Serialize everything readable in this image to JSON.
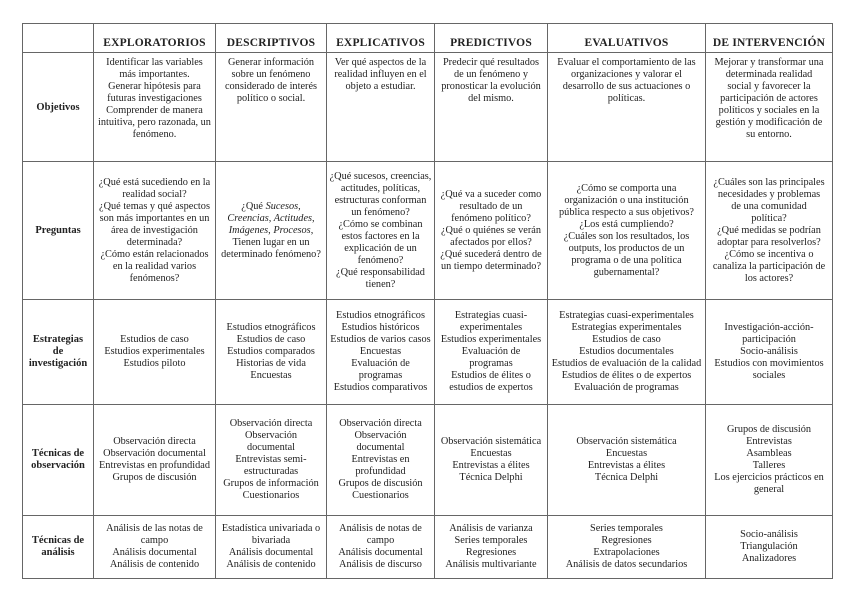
{
  "columns": [
    "",
    "EXPLORATORIOS",
    "DESCRIPTIVOS",
    "EXPLICATIVOS",
    "PREDICTIVOS",
    "EVALUATIVOS",
    "DE INTERVENCIÓN"
  ],
  "rows": [
    {
      "header": [
        "Objetivos"
      ],
      "cells": [
        [
          "Identificar las variables",
          "más importantes.",
          "Generar hipótesis para",
          "futuras investigaciones",
          "Comprender de manera",
          "intuitiva, pero razonada, un",
          "fenómeno."
        ],
        [
          "Generar información",
          "sobre un fenómeno",
          "considerado de interés",
          "político o social."
        ],
        [
          "Ver qué aspectos de la",
          "realidad influyen en el",
          "objeto a estudiar."
        ],
        [
          "Predecir qué resultados",
          "de un fenómeno y",
          "pronosticar la evolución",
          "del mismo."
        ],
        [
          "Evaluar el comportamiento de las",
          "organizaciones y valorar el",
          "desarrollo de sus actuaciones o",
          "políticas."
        ],
        [
          "Mejorar y transformar una",
          "determinada realidad",
          "social y favorecer la",
          "participación de actores",
          "políticos y sociales en la",
          "gestión y modificación de",
          "su entorno."
        ]
      ]
    },
    {
      "header": [
        "Preguntas"
      ],
      "cells": [
        [
          "¿Qué está sucediendo en la",
          "realidad social?",
          "¿Qué temas y qué aspectos",
          "son más importantes en un",
          "área de investigación",
          "determinada?",
          "¿Cómo están relacionados",
          "en la realidad varios",
          "fenómenos?"
        ],
        [
          [
            {
              "t": "¿Qué "
            },
            {
              "t": "Sucesos,",
              "i": true
            }
          ],
          [
            {
              "t": "Creencias, Actitudes,",
              "i": true
            }
          ],
          [
            {
              "t": "Imágenes, Procesos",
              "i": true
            },
            {
              "t": ","
            }
          ],
          "Tienen lugar en un",
          "determinado fenómeno?"
        ],
        [
          "¿Qué sucesos, creencias,",
          "actitudes, políticas,",
          "estructuras conforman",
          "un fenómeno?",
          "¿Cómo se combinan",
          "estos factores en la",
          "explicación de un",
          "fenómeno?",
          "¿Qué responsabilidad",
          "tienen?"
        ],
        [
          "¿Qué va a suceder como",
          "resultado de un",
          "fenómeno político?",
          "¿Qué o quiénes se verán",
          "afectados por ellos?",
          "¿Qué sucederá dentro de",
          "un tiempo determinado?"
        ],
        [
          "¿Cómo se comporta una",
          "organización o una institución",
          "pública respecto a sus objetivos?",
          "¿Los está cumpliendo?",
          "¿Cuáles son los resultados, los",
          "outputs, los productos de un",
          "programa o de una política",
          "gubernamental?"
        ],
        [
          "¿Cuáles son las principales",
          "necesidades y problemas",
          "de una comunidad",
          "política?",
          "¿Qué medidas se podrían",
          "adoptar para resolverlos?",
          "¿Cómo se incentiva o",
          "canaliza la participación de",
          "los actores?"
        ]
      ]
    },
    {
      "header": [
        "Estrategias",
        "de",
        "investigación"
      ],
      "cells": [
        [
          "Estudios de caso",
          "Estudios experimentales",
          "Estudios piloto"
        ],
        [
          "Estudios etnográficos",
          "Estudios de caso",
          "Estudios comparados",
          "Historias de vida",
          "Encuestas"
        ],
        [
          "Estudios etnográficos",
          "Estudios históricos",
          "Estudios de varios casos",
          "Encuestas",
          "Evaluación de",
          "programas",
          "Estudios comparativos"
        ],
        [
          "Estrategias cuasi-",
          "experimentales",
          "Estudios experimentales",
          "Evaluación de",
          "programas",
          "Estudios de élites o",
          "estudios de expertos"
        ],
        [
          "Estrategias cuasi-experimentales",
          "Estrategias experimentales",
          "Estudios de caso",
          "Estudios documentales",
          "Estudios de evaluación de la calidad",
          "Estudios de élites o de expertos",
          "Evaluación de programas"
        ],
        [
          "Investigación-acción-",
          "participación",
          "Socio-análisis",
          "Estudios con movimientos",
          "sociales"
        ]
      ]
    },
    {
      "header": [
        "Técnicas de",
        "observación"
      ],
      "cells": [
        [
          "Observación directa",
          "Observación documental",
          "Entrevistas en profundidad",
          "Grupos de discusión"
        ],
        [
          "Observación directa",
          "Observación",
          "documental",
          "Entrevistas semi-",
          "estructuradas",
          "Grupos de información",
          "Cuestionarios"
        ],
        [
          "Observación directa",
          "Observación",
          "documental",
          "Entrevistas en",
          "profundidad",
          "Grupos de discusión",
          "Cuestionarios"
        ],
        [
          "Observación sistemática",
          "Encuestas",
          "Entrevistas a élites",
          "Técnica Delphi"
        ],
        [
          "Observación sistemática",
          "Encuestas",
          "Entrevistas a élites",
          "Técnica Delphi"
        ],
        [
          "Grupos de discusión",
          "Entrevistas",
          "Asambleas",
          "Talleres",
          "Los ejercicios prácticos en",
          "general"
        ]
      ]
    },
    {
      "header": [
        "Técnicas de",
        "análisis"
      ],
      "cells": [
        [
          "Análisis de las notas de",
          "campo",
          "Análisis documental",
          "Análisis de contenido"
        ],
        [
          "Estadística univariada o",
          "bivariada",
          "Análisis documental",
          "Análisis de contenido"
        ],
        [
          "Análisis de notas de",
          "campo",
          "Análisis documental",
          "Análisis de discurso"
        ],
        [
          "Análisis de varianza",
          "Series temporales",
          "Regresiones",
          "Análisis multivariante"
        ],
        [
          "Series temporales",
          "Regresiones",
          "Extrapolaciones",
          "Análisis de datos secundarios"
        ],
        [
          "Socio-análisis",
          "Triangulación",
          "Analizadores"
        ]
      ]
    }
  ]
}
